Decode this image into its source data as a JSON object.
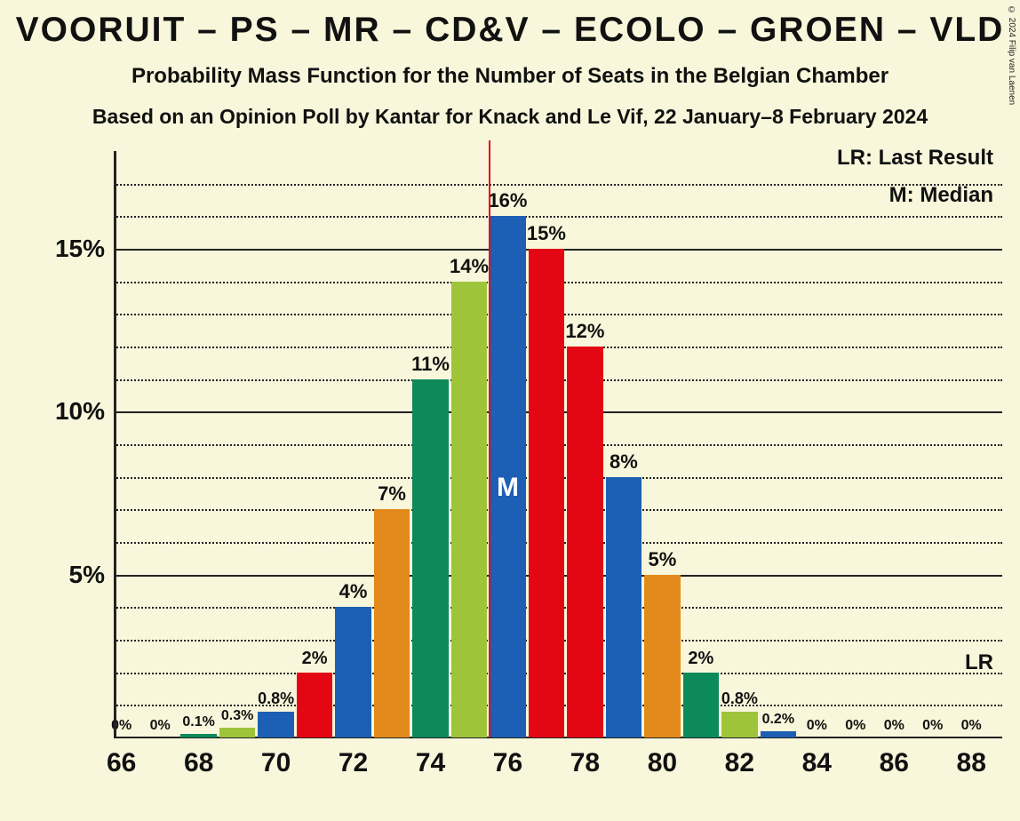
{
  "title": "VOORUIT – PS – MR – CD&V – ECOLO – GROEN – VLD",
  "subtitle1": "Probability Mass Function for the Number of Seats in the Belgian Chamber",
  "subtitle2": "Based on an Opinion Poll by Kantar for Knack and Le Vif, 22 January–8 February 2024",
  "copyright": "© 2024 Filip van Laenen",
  "chart": {
    "type": "bar",
    "background_color": "#f8f7db",
    "axis_color": "#222222",
    "grid_major_color": "#222222",
    "grid_minor_style": "dotted",
    "bar_width_ratio": 0.93,
    "ymax": 18,
    "y_ticks": [
      {
        "value": 5,
        "label": "5%"
      },
      {
        "value": 10,
        "label": "10%"
      },
      {
        "value": 15,
        "label": "15%"
      }
    ],
    "y_minor_ticks": [
      1,
      2,
      3,
      4,
      6,
      7,
      8,
      9,
      11,
      12,
      13,
      14,
      16,
      17
    ],
    "x_ticks": [
      {
        "value": 66,
        "label": "66"
      },
      {
        "value": 68,
        "label": "68"
      },
      {
        "value": 70,
        "label": "70"
      },
      {
        "value": 72,
        "label": "72"
      },
      {
        "value": 74,
        "label": "74"
      },
      {
        "value": 76,
        "label": "76"
      },
      {
        "value": 78,
        "label": "78"
      },
      {
        "value": 80,
        "label": "80"
      },
      {
        "value": 82,
        "label": "82"
      },
      {
        "value": 84,
        "label": "84"
      },
      {
        "value": 86,
        "label": "86"
      },
      {
        "value": 88,
        "label": "88"
      }
    ],
    "xmin": 65.8,
    "xmax": 88.8,
    "bars": [
      {
        "x": 66,
        "value": 0,
        "label": "0%",
        "label_size": 16,
        "color": "#1d5fb4"
      },
      {
        "x": 67,
        "value": 0,
        "label": "0%",
        "label_size": 16,
        "color": "#e38a1d"
      },
      {
        "x": 68,
        "value": 0.1,
        "label": "0.1%",
        "label_size": 16,
        "color": "#0c8a5a"
      },
      {
        "x": 69,
        "value": 0.3,
        "label": "0.3%",
        "label_size": 16,
        "color": "#9ec53a"
      },
      {
        "x": 70,
        "value": 0.8,
        "label": "0.8%",
        "label_size": 18,
        "color": "#1d5fb4"
      },
      {
        "x": 71,
        "value": 2,
        "label": "2%",
        "label_size": 20,
        "color": "#e30613"
      },
      {
        "x": 72,
        "value": 4,
        "label": "4%",
        "label_size": 22,
        "color": "#1d5fb4"
      },
      {
        "x": 73,
        "value": 7,
        "label": "7%",
        "label_size": 22,
        "color": "#e38a1d"
      },
      {
        "x": 74,
        "value": 11,
        "label": "11%",
        "label_size": 22,
        "color": "#0c8a5a"
      },
      {
        "x": 75,
        "value": 14,
        "label": "14%",
        "label_size": 22,
        "color": "#9ec53a"
      },
      {
        "x": 76,
        "value": 16,
        "label": "16%",
        "label_size": 22,
        "color": "#1d5fb4"
      },
      {
        "x": 77,
        "value": 15,
        "label": "15%",
        "label_size": 22,
        "color": "#e30613"
      },
      {
        "x": 78,
        "value": 12,
        "label": "12%",
        "label_size": 22,
        "color": "#e30613"
      },
      {
        "x": 79,
        "value": 8,
        "label": "8%",
        "label_size": 22,
        "color": "#1d5fb4"
      },
      {
        "x": 80,
        "value": 5,
        "label": "5%",
        "label_size": 22,
        "color": "#e38a1d"
      },
      {
        "x": 81,
        "value": 2,
        "label": "2%",
        "label_size": 20,
        "color": "#0c8a5a"
      },
      {
        "x": 82,
        "value": 0.8,
        "label": "0.8%",
        "label_size": 18,
        "color": "#9ec53a"
      },
      {
        "x": 83,
        "value": 0.2,
        "label": "0.2%",
        "label_size": 16,
        "color": "#1d5fb4"
      },
      {
        "x": 84,
        "value": 0,
        "label": "0%",
        "label_size": 16,
        "color": "#e30613"
      },
      {
        "x": 85,
        "value": 0,
        "label": "0%",
        "label_size": 16,
        "color": "#1d5fb4"
      },
      {
        "x": 86,
        "value": 0,
        "label": "0%",
        "label_size": 16,
        "color": "#e38a1d"
      },
      {
        "x": 87,
        "value": 0,
        "label": "0%",
        "label_size": 16,
        "color": "#0c8a5a"
      },
      {
        "x": 88,
        "value": 0,
        "label": "0%",
        "label_size": 16,
        "color": "#9ec53a"
      }
    ],
    "median": {
      "x": 76,
      "label": "M",
      "line_color": "#e30613"
    },
    "legend": {
      "lr_label": "LR: Last Result",
      "m_label": "M: Median",
      "lr_marker": "LR"
    }
  }
}
